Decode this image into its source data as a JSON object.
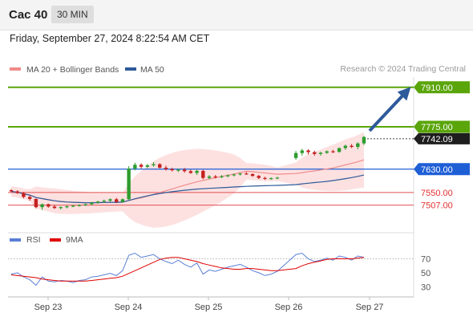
{
  "header": {
    "instrument": "Cac 40",
    "timeframe": "30 MIN"
  },
  "datetime": "Friday, September 27, 2024 8:22:54 AM CET",
  "credit": "Research © 2024 Trading Central",
  "legend": {
    "main": [
      {
        "label": "MA 20 + Bollinger Bands",
        "color": "#f08c8c"
      },
      {
        "label": "MA 50",
        "color": "#2d5a9a"
      }
    ],
    "rsi": [
      {
        "label": "RSI",
        "color": "#5b7fd6"
      },
      {
        "label": "9MA",
        "color": "#e00000"
      }
    ]
  },
  "colors": {
    "up": "#2e9c2e",
    "down": "#c52020",
    "target": "#5aa50a",
    "pivot": "#1f5fd6",
    "support": "#e15050",
    "arrow": "#2d5a9a"
  },
  "chart_data": {
    "type": "candlestick",
    "y_axis_range": [
      7440,
      7945
    ],
    "x_labels": [
      "Sep 23",
      "Sep 24",
      "Sep 25",
      "Sep 26",
      "Sep 27"
    ],
    "candles": [
      [
        7558,
        7562,
        7552,
        7554
      ],
      [
        7554,
        7558,
        7545,
        7548
      ],
      [
        7548,
        7552,
        7530,
        7535
      ],
      [
        7535,
        7540,
        7522,
        7528
      ],
      [
        7528,
        7530,
        7496,
        7500
      ],
      [
        7500,
        7512,
        7490,
        7510
      ],
      [
        7510,
        7512,
        7498,
        7502
      ],
      [
        7502,
        7508,
        7494,
        7497
      ],
      [
        7497,
        7503,
        7492,
        7500
      ],
      [
        7500,
        7506,
        7496,
        7503
      ],
      [
        7503,
        7508,
        7500,
        7505
      ],
      [
        7505,
        7510,
        7502,
        7507
      ],
      [
        7507,
        7512,
        7504,
        7510
      ],
      [
        7510,
        7518,
        7506,
        7515
      ],
      [
        7515,
        7522,
        7512,
        7519
      ],
      [
        7519,
        7526,
        7515,
        7522
      ],
      [
        7522,
        7530,
        7518,
        7527
      ],
      [
        7527,
        7532,
        7514,
        7518
      ],
      [
        7518,
        7530,
        7515,
        7527
      ],
      [
        7527,
        7640,
        7525,
        7632
      ],
      [
        7632,
        7652,
        7626,
        7645
      ],
      [
        7645,
        7650,
        7632,
        7638
      ],
      [
        7638,
        7648,
        7633,
        7643
      ],
      [
        7643,
        7654,
        7638,
        7647
      ],
      [
        7647,
        7650,
        7632,
        7635
      ],
      [
        7635,
        7642,
        7625,
        7630
      ],
      [
        7630,
        7635,
        7622,
        7626
      ],
      [
        7626,
        7632,
        7620,
        7628
      ],
      [
        7628,
        7634,
        7618,
        7623
      ],
      [
        7623,
        7628,
        7614,
        7617
      ],
      [
        7617,
        7628,
        7610,
        7624
      ],
      [
        7624,
        7628,
        7595,
        7600
      ],
      [
        7600,
        7610,
        7595,
        7605
      ],
      [
        7605,
        7610,
        7598,
        7603
      ],
      [
        7603,
        7610,
        7599,
        7606
      ],
      [
        7606,
        7612,
        7602,
        7609
      ],
      [
        7609,
        7615,
        7605,
        7612
      ],
      [
        7612,
        7618,
        7608,
        7615
      ],
      [
        7615,
        7620,
        7611,
        7613
      ],
      [
        7613,
        7616,
        7604,
        7607
      ],
      [
        7607,
        7610,
        7596,
        7600
      ],
      [
        7600,
        7604,
        7593,
        7597
      ],
      [
        7597,
        7602,
        7594,
        7599
      ],
      [
        7599,
        7604,
        7596,
        7601
      ],
      [
        7668,
        7692,
        7662,
        7685
      ],
      [
        7685,
        7700,
        7676,
        7694
      ],
      [
        7694,
        7698,
        7680,
        7688
      ],
      [
        7688,
        7693,
        7676,
        7682
      ],
      [
        7682,
        7690,
        7676,
        7686
      ],
      [
        7686,
        7694,
        7682,
        7691
      ],
      [
        7691,
        7696,
        7685,
        7689
      ],
      [
        7689,
        7704,
        7686,
        7702
      ],
      [
        7702,
        7714,
        7696,
        7710
      ],
      [
        7710,
        7716,
        7702,
        7706
      ],
      [
        7706,
        7722,
        7698,
        7718
      ],
      [
        7718,
        7744,
        7712,
        7740
      ]
    ],
    "levels": [
      {
        "value": 7910,
        "label": "7910.00",
        "type": "target"
      },
      {
        "value": 7775,
        "label": "7775.00",
        "type": "target"
      },
      {
        "value": 7630,
        "label": "7630.00",
        "type": "pivot"
      },
      {
        "value": 7550,
        "label": "7550.00",
        "type": "support"
      },
      {
        "value": 7507,
        "label": "7507.00",
        "type": "support"
      }
    ],
    "last_price": {
      "value": 7742.09,
      "label": "7742.09"
    },
    "rsi": {
      "ticks": [
        "70",
        "50",
        "30"
      ],
      "range": [
        20,
        82
      ],
      "rsi": [
        48,
        50,
        44,
        40,
        32,
        44,
        38,
        37,
        39,
        38,
        36,
        39,
        40,
        44,
        45,
        47,
        49,
        46,
        53,
        75,
        78,
        72,
        74,
        76,
        70,
        66,
        63,
        68,
        62,
        58,
        64,
        48,
        54,
        52,
        55,
        58,
        60,
        62,
        58,
        53,
        50,
        46,
        48,
        52,
        76,
        78,
        70,
        66,
        68,
        71,
        68,
        74,
        72,
        68,
        74,
        72
      ],
      "ma9": [
        47,
        46,
        45,
        44,
        43,
        41,
        40,
        39,
        38,
        38,
        38,
        38,
        38,
        39,
        40,
        41,
        42,
        43,
        45,
        49,
        53,
        57,
        61,
        65,
        69,
        71,
        72,
        72,
        70,
        68,
        66,
        63,
        61,
        59,
        57,
        56,
        55,
        55,
        56,
        56,
        55,
        54,
        53,
        53,
        56,
        60,
        63,
        65,
        67,
        69,
        70,
        70,
        70,
        70,
        71,
        72
      ]
    }
  }
}
